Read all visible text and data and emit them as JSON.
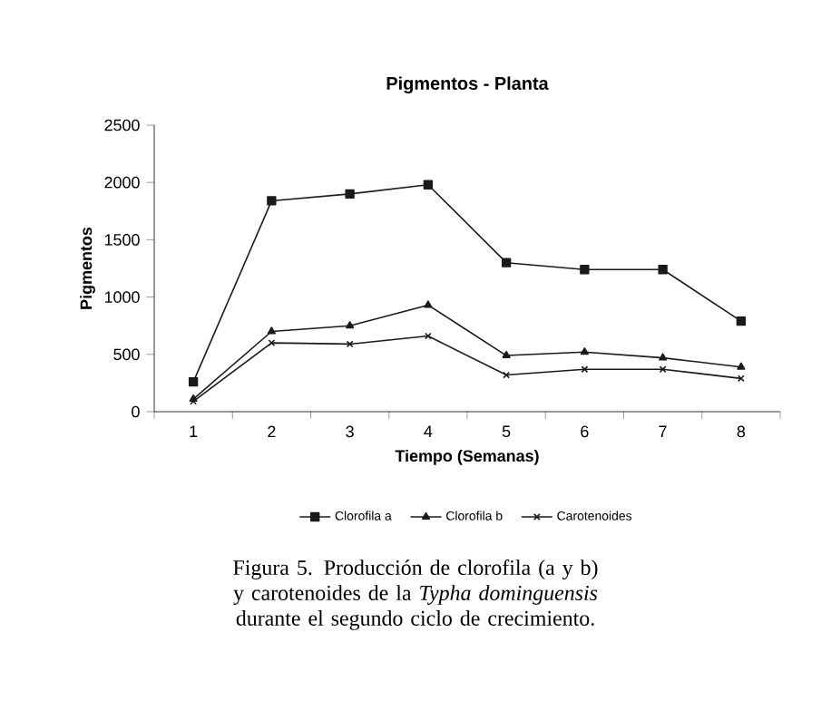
{
  "chart_data": {
    "type": "line",
    "title": "Pigmentos - Planta",
    "xlabel": "Tiempo (Semanas)",
    "ylabel": "Pigmentos",
    "categories": [
      "1",
      "2",
      "3",
      "4",
      "5",
      "6",
      "7",
      "8"
    ],
    "series": [
      {
        "name": "Clorofila a",
        "color": "#1a1a1a",
        "marker": "square",
        "values": [
          260,
          1840,
          1900,
          1980,
          1300,
          1240,
          1240,
          790
        ]
      },
      {
        "name": "Clorofila b",
        "color": "#1a1a1a",
        "marker": "triangle",
        "values": [
          110,
          700,
          750,
          930,
          490,
          520,
          470,
          390
        ]
      },
      {
        "name": "Carotenoides",
        "color": "#1a1a1a",
        "marker": "cross",
        "values": [
          90,
          600,
          590,
          660,
          320,
          370,
          370,
          290
        ]
      }
    ],
    "ylim": [
      0,
      2500
    ],
    "yticks": [
      0,
      500,
      1000,
      1500,
      2000,
      2500
    ],
    "grid": false,
    "legend": "bottom",
    "line_style": "solid",
    "annotations": [
      "Figura 5. Producción de clorofila (a y b) y carotenoides de la *Typha dominguensis* durante el segundo ciclo de crecimiento."
    ]
  }
}
